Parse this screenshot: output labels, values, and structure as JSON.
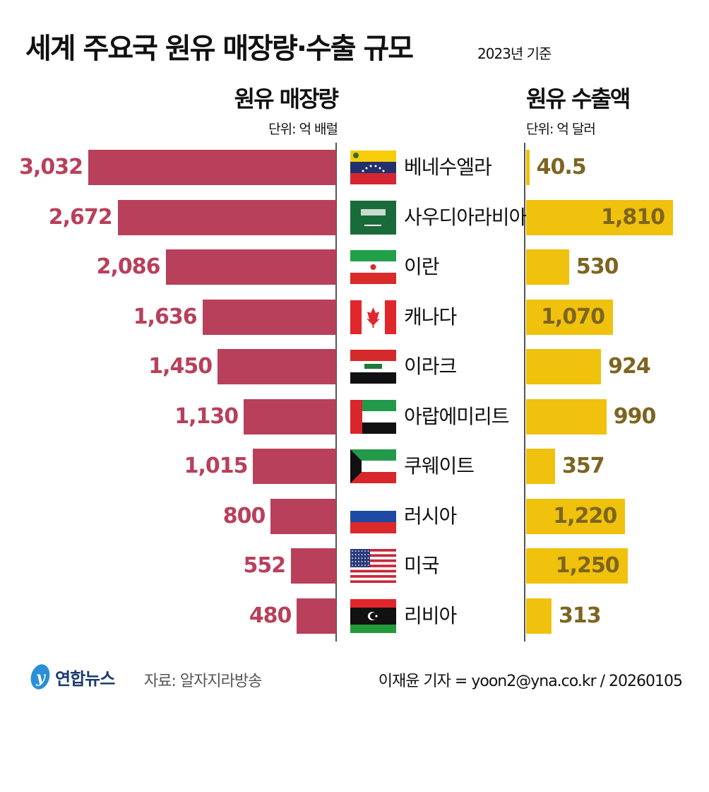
{
  "header": {
    "title": "세계 주요국 원유 매장량·수출 규모",
    "basis": "2023년 기준"
  },
  "colors": {
    "reserves": "#b8405a",
    "exports": "#f0c10d",
    "export_label": "#7d6520"
  },
  "chart_data": [
    {
      "type": "bar",
      "orientation": "horizontal",
      "title": "원유 매장량",
      "unit": "단위: 억 배럴",
      "categories": [
        "베네수엘라",
        "사우디아라비아",
        "이란",
        "캐나다",
        "이라크",
        "아랍에미리트",
        "쿠웨이트",
        "러시아",
        "미국",
        "리비아"
      ],
      "values": [
        3032,
        2672,
        2086,
        1636,
        1450,
        1130,
        1015,
        800,
        552,
        480
      ],
      "labels": [
        "3,032",
        "2,672",
        "2,086",
        "1,636",
        "1,450",
        "1,130",
        "1,015",
        "800",
        "552",
        "480"
      ]
    },
    {
      "type": "bar",
      "orientation": "horizontal",
      "title": "원유 수출액",
      "unit": "단위: 억 달러",
      "categories": [
        "베네수엘라",
        "사우디아라비아",
        "이란",
        "캐나다",
        "이라크",
        "아랍에미리트",
        "쿠웨이트",
        "러시아",
        "미국",
        "리비아"
      ],
      "values": [
        40.5,
        1810,
        530,
        1070,
        924,
        990,
        357,
        1220,
        1250,
        313
      ],
      "labels": [
        "40.5",
        "1,810",
        "530",
        "1,070",
        "924",
        "990",
        "357",
        "1,220",
        "1,250",
        "313"
      ]
    }
  ],
  "flags": [
    "venezuela-flag",
    "saudi-arabia-flag",
    "iran-flag",
    "canada-flag",
    "iraq-flag",
    "uae-flag",
    "kuwait-flag",
    "russia-flag",
    "usa-flag",
    "libya-flag"
  ],
  "footer": {
    "logo": "연합뉴스",
    "source": "자료: 알자지라방송",
    "credit": "이재윤 기자 = yoon2@yna.co.kr / 20260105"
  }
}
